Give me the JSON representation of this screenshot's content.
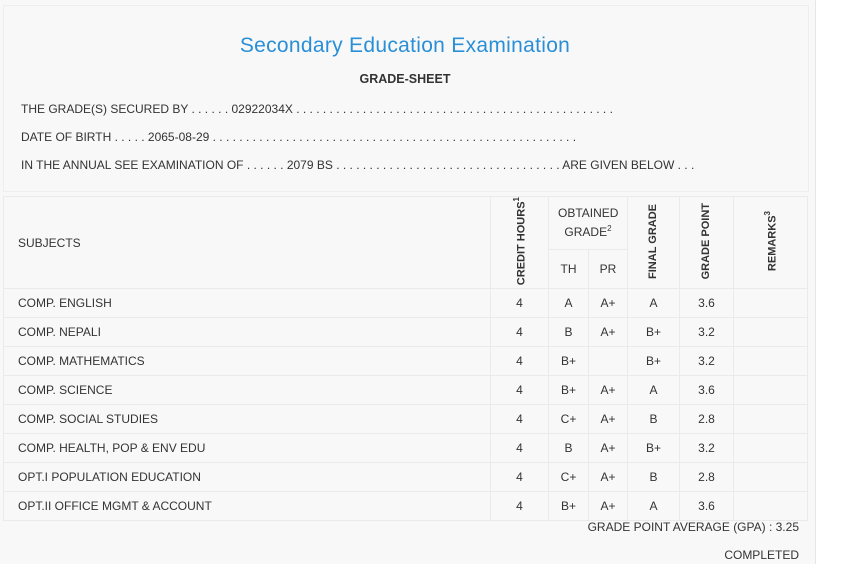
{
  "header": {
    "exam_title": "Secondary Education Examination",
    "sheet_title": "GRADE-SHEET",
    "secured_by_line": "THE GRADE(S) SECURED BY . . . . . . 02922034X . . . . . . . . . . . . . . . . . . . . . . . . . . . . . . . . . . . . . . . . . . . . . . . .",
    "dob_line": "DATE OF BIRTH . . . . . 2065-08-29 . . . . . . . . . . . . . . . . . . . . . . . . . . . . . . . . . . . . . . . . . . . . . . . . . . . . . . .",
    "annual_line": "IN THE ANNUAL SEE EXAMINATION OF . . . . . . 2079 BS . . . . . . . . . . . . . . . . . . . . . . . . . . . . . . . . . . ARE GIVEN BELOW . . ."
  },
  "table": {
    "headers": {
      "subjects": "SUBJECTS",
      "credit_hours": "CREDIT HOURS",
      "credit_hours_sup": "1",
      "obtained_grade": "OBTAINED GRADE",
      "obtained_grade_sup": "2",
      "th": "TH",
      "pr": "PR",
      "final_grade": "FINAL GRADE",
      "grade_point": "GRADE POINT",
      "remarks": "REMARKS",
      "remarks_sup": "3"
    },
    "rows": [
      {
        "subject": "COMP. ENGLISH",
        "credit": "4",
        "th": "A",
        "pr": "A+",
        "final": "A",
        "gp": "3.6",
        "remarks": ""
      },
      {
        "subject": "COMP. NEPALI",
        "credit": "4",
        "th": "B",
        "pr": "A+",
        "final": "B+",
        "gp": "3.2",
        "remarks": ""
      },
      {
        "subject": "COMP. MATHEMATICS",
        "credit": "4",
        "th": "B+",
        "pr": "",
        "final": "B+",
        "gp": "3.2",
        "remarks": ""
      },
      {
        "subject": "COMP. SCIENCE",
        "credit": "4",
        "th": "B+",
        "pr": "A+",
        "final": "A",
        "gp": "3.6",
        "remarks": ""
      },
      {
        "subject": "COMP. SOCIAL STUDIES",
        "credit": "4",
        "th": "C+",
        "pr": "A+",
        "final": "B",
        "gp": "2.8",
        "remarks": ""
      },
      {
        "subject": "COMP. HEALTH, POP & ENV EDU",
        "credit": "4",
        "th": "B",
        "pr": "A+",
        "final": "B+",
        "gp": "3.2",
        "remarks": ""
      },
      {
        "subject": "OPT.I POPULATION EDUCATION",
        "credit": "4",
        "th": "C+",
        "pr": "A+",
        "final": "B",
        "gp": "2.8",
        "remarks": ""
      },
      {
        "subject": "OPT.II OFFICE MGMT & ACCOUNT",
        "credit": "4",
        "th": "B+",
        "pr": "A+",
        "final": "A",
        "gp": "3.6",
        "remarks": ""
      }
    ]
  },
  "footer": {
    "gpa_line": "GRADE POINT AVERAGE (GPA) : 3.25",
    "status": "COMPLETED"
  },
  "colors": {
    "title": "#2a8fd6",
    "background": "#f8f8f8",
    "border": "#eaeaea"
  }
}
